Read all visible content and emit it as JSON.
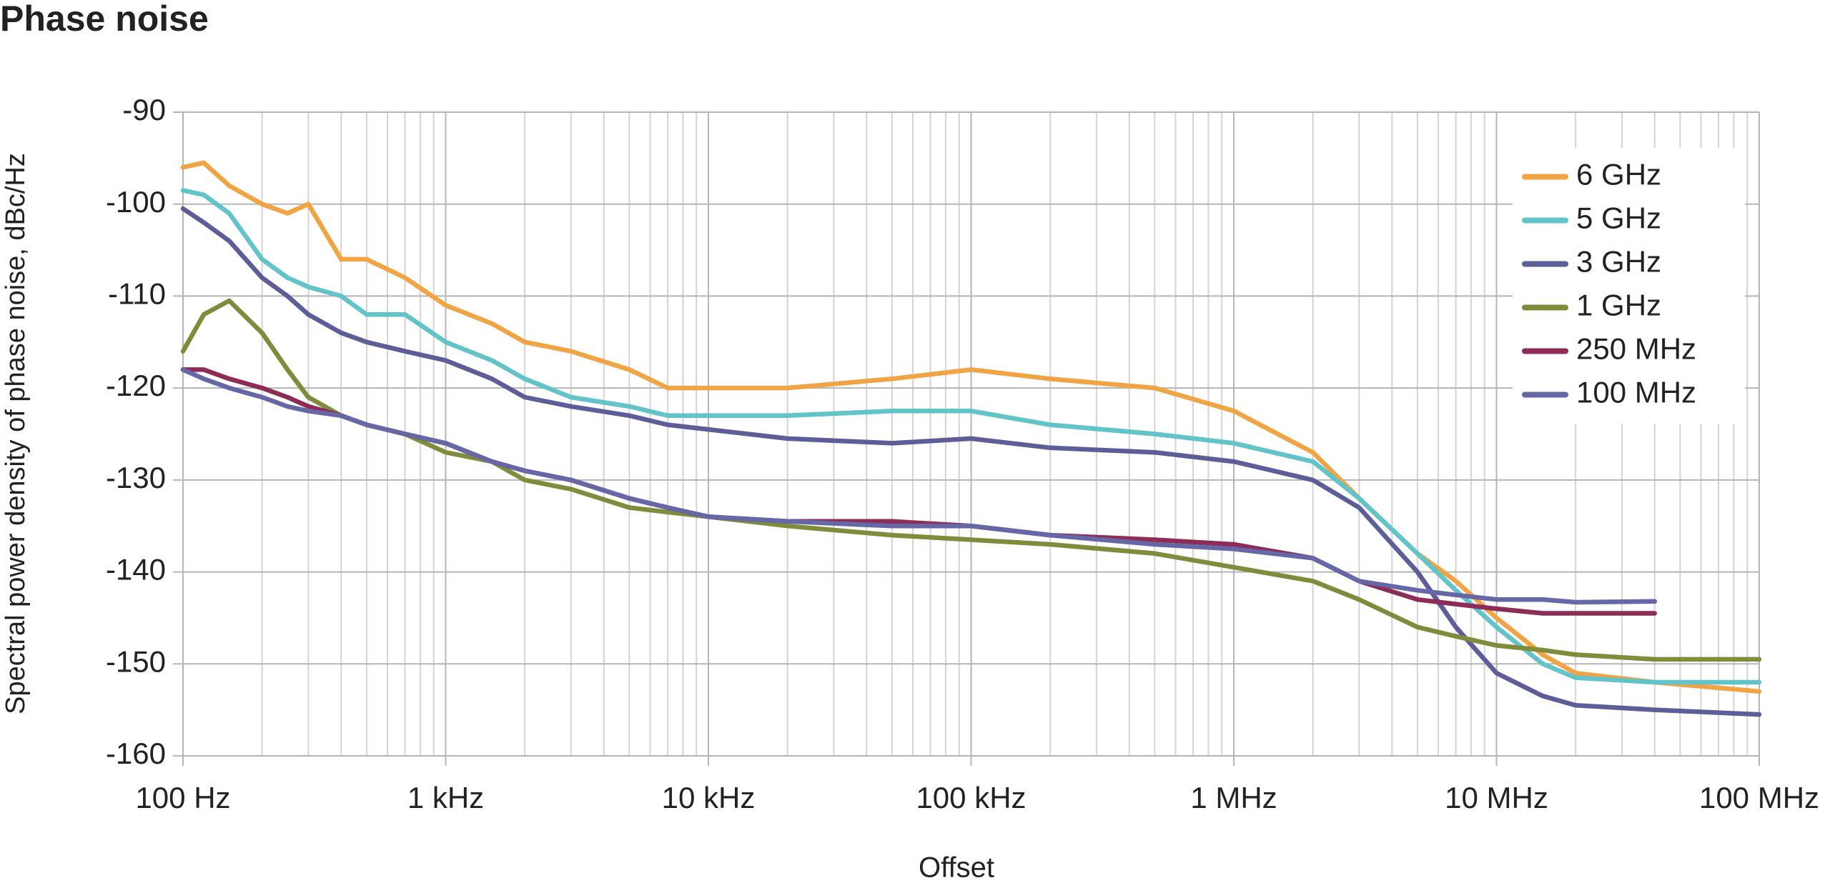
{
  "chart_data": {
    "type": "line",
    "title": "Phase noise",
    "x_label": "Offset",
    "y_label": "Spectral power density of phase noise, dBc/Hz",
    "x_scale": "log",
    "grid": true,
    "minor_grid": true,
    "legend": "upper right",
    "xlim": [
      100,
      100000000
    ],
    "ylim": [
      -160,
      -90
    ],
    "xticks": [
      {
        "value": 100,
        "label": "100 Hz"
      },
      {
        "value": 1000,
        "label": "1 kHz"
      },
      {
        "value": 10000,
        "label": "10 kHz"
      },
      {
        "value": 100000,
        "label": "100 kHz"
      },
      {
        "value": 1000000,
        "label": "1 MHz"
      },
      {
        "value": 10000000,
        "label": "10 MHz"
      },
      {
        "value": 100000000,
        "label": "100 MHz"
      }
    ],
    "yticks": [
      -160,
      -150,
      -140,
      -130,
      -120,
      -110,
      -100,
      -90
    ],
    "x": [
      100,
      120,
      150,
      200,
      250,
      300,
      400,
      500,
      700,
      1000,
      1500,
      2000,
      3000,
      5000,
      7000,
      10000,
      20000,
      50000,
      100000,
      200000,
      500000,
      1000000,
      2000000,
      3000000,
      5000000,
      7000000,
      10000000,
      15000000,
      20000000,
      40000000,
      100000000
    ],
    "series": [
      {
        "name": "6 GHz",
        "color": "#f0a443",
        "values": [
          -96,
          -95.5,
          -98,
          -100,
          -101,
          -100,
          -106,
          -106,
          -108,
          -111,
          -113,
          -115,
          -116,
          -118,
          -120,
          -120,
          -120,
          -119,
          -118,
          -119,
          -120,
          -122.5,
          -127,
          -132,
          -138,
          -141,
          -145,
          -149,
          -151,
          -152,
          -153
        ]
      },
      {
        "name": "5 GHz",
        "color": "#62c4c8",
        "values": [
          -98.5,
          -99,
          -101,
          -106,
          -108,
          -109,
          -110,
          -112,
          -112,
          -115,
          -117,
          -119,
          -121,
          -122,
          -123,
          -123,
          -123,
          -122.5,
          -122.5,
          -124,
          -125,
          -126,
          -128,
          -132,
          -138,
          -142,
          -146,
          -150,
          -151.5,
          -152,
          -152
        ]
      },
      {
        "name": "3 GHz",
        "color": "#5d5d99",
        "values": [
          -100.5,
          -102,
          -104,
          -108,
          -110,
          -112,
          -114,
          -115,
          -116,
          -117,
          -119,
          -121,
          -122,
          -123,
          -124,
          -124.5,
          -125.5,
          -126,
          -125.5,
          -126.5,
          -127,
          -128,
          -130,
          -133,
          -140,
          -146,
          -151,
          -153.5,
          -154.5,
          -155,
          -155.5
        ]
      },
      {
        "name": "1 GHz",
        "color": "#7e8c3c",
        "values": [
          -116,
          -112,
          -110.5,
          -114,
          -118,
          -121,
          -123,
          -124,
          -125,
          -127,
          -128,
          -130,
          -131,
          -133,
          -133.5,
          -134,
          -135,
          -136,
          -136.5,
          -137,
          -138,
          -139.5,
          -141,
          -143,
          -146,
          -147,
          -148,
          -148.5,
          -149,
          -149.5,
          -149.5
        ]
      },
      {
        "name": "250 MHz",
        "color": "#8e2c58",
        "values": [
          -118,
          -118,
          -119,
          -120,
          -121,
          -122,
          -123,
          -124,
          -125,
          -126,
          -128,
          -129,
          -130,
          -132,
          -133,
          -134,
          -134.5,
          -134.5,
          -135,
          -136,
          -136.5,
          -137,
          -138.5,
          -141,
          -143,
          -143.5,
          -144,
          -144.5,
          -144.5,
          -144.5,
          null
        ]
      },
      {
        "name": "100 MHz",
        "color": "#6667a6",
        "values": [
          -118,
          -119,
          -120,
          -121,
          -122,
          -122.5,
          -123,
          -124,
          -125,
          -126,
          -128,
          -129,
          -130,
          -132,
          -133,
          -134,
          -134.5,
          -135,
          -135,
          -136,
          -137,
          -137.5,
          -138.5,
          -141,
          -142,
          -142.5,
          -143,
          -143,
          -143.3,
          -143.2,
          null
        ]
      }
    ]
  }
}
